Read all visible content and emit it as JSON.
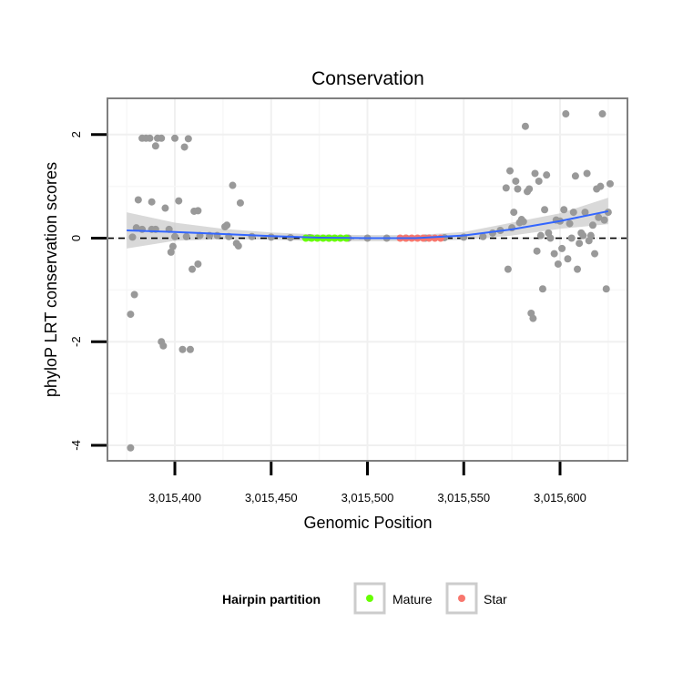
{
  "chart_data": {
    "type": "scatter",
    "title": "Conservation",
    "xlabel": "Genomic Position",
    "ylabel": "phyloP LRT conservation scores",
    "xlim": [
      3015365,
      3015635
    ],
    "ylim": [
      -4.3,
      2.7
    ],
    "x_ticks": [
      3015400,
      3015450,
      3015500,
      3015550,
      3015600
    ],
    "x_tick_labels": [
      "3,015,400",
      "3,015,450",
      "3,015,500",
      "3,015,550",
      "3,015,600"
    ],
    "y_ticks": [
      -4,
      -2,
      0,
      2
    ],
    "y_tick_labels": [
      "-4",
      "-2",
      "0",
      "2"
    ],
    "reference_line": {
      "y": 0,
      "style": "dashed"
    },
    "colors": {
      "points": "#999999",
      "smooth": "#3366ff",
      "band": "#cccccc",
      "mature": "#66ff00",
      "star": "#f8766d",
      "panel_border": "#7f7f7f"
    },
    "legend": {
      "title": "Hairpin partition",
      "position": "bottom",
      "entries": [
        {
          "label": "Mature",
          "color": "#66ff00"
        },
        {
          "label": "Star",
          "color": "#f8766d"
        }
      ]
    },
    "series": [
      {
        "name": "scores",
        "points": [
          [
            3015377,
            -4.05
          ],
          [
            3015377,
            -1.47
          ],
          [
            3015378,
            0.02
          ],
          [
            3015379,
            -1.09
          ],
          [
            3015380,
            0.2
          ],
          [
            3015381,
            0.74
          ],
          [
            3015383,
            1.93
          ],
          [
            3015383,
            0.17
          ],
          [
            3015385,
            1.93
          ],
          [
            3015387,
            1.93
          ],
          [
            3015388,
            0.17
          ],
          [
            3015388,
            0.7
          ],
          [
            3015390,
            1.78
          ],
          [
            3015390,
            0.17
          ],
          [
            3015391,
            1.93
          ],
          [
            3015393,
            -2.0
          ],
          [
            3015393,
            1.93
          ],
          [
            3015394,
            -2.08
          ],
          [
            3015395,
            0.58
          ],
          [
            3015397,
            0.17
          ],
          [
            3015398,
            -0.27
          ],
          [
            3015399,
            -0.16
          ],
          [
            3015400,
            1.93
          ],
          [
            3015400,
            0.03
          ],
          [
            3015402,
            0.72
          ],
          [
            3015404,
            -2.15
          ],
          [
            3015405,
            1.76
          ],
          [
            3015406,
            0.03
          ],
          [
            3015407,
            1.92
          ],
          [
            3015408,
            -2.15
          ],
          [
            3015409,
            -0.6
          ],
          [
            3015410,
            0.52
          ],
          [
            3015412,
            0.53
          ],
          [
            3015412,
            -0.5
          ],
          [
            3015413,
            0.05
          ],
          [
            3015418,
            0.05
          ],
          [
            3015422,
            0.05
          ],
          [
            3015426,
            0.22
          ],
          [
            3015427,
            0.25
          ],
          [
            3015428,
            0.03
          ],
          [
            3015430,
            1.02
          ],
          [
            3015432,
            -0.1
          ],
          [
            3015433,
            -0.15
          ],
          [
            3015434,
            0.68
          ],
          [
            3015440,
            0.03
          ],
          [
            3015450,
            0.02
          ],
          [
            3015460,
            0.01
          ],
          [
            3015470,
            0.01
          ],
          [
            3015480,
            0.0
          ],
          [
            3015490,
            0.0
          ],
          [
            3015500,
            0.0
          ],
          [
            3015510,
            0.0
          ],
          [
            3015520,
            0.0
          ],
          [
            3015530,
            0.0
          ],
          [
            3015540,
            0.01
          ],
          [
            3015550,
            0.02
          ],
          [
            3015560,
            0.03
          ],
          [
            3015565,
            0.1
          ],
          [
            3015569,
            0.15
          ],
          [
            3015572,
            0.97
          ],
          [
            3015573,
            -0.6
          ],
          [
            3015574,
            1.3
          ],
          [
            3015575,
            0.2
          ],
          [
            3015576,
            0.5
          ],
          [
            3015577,
            1.1
          ],
          [
            3015578,
            0.95
          ],
          [
            3015579,
            0.3
          ],
          [
            3015580,
            0.36
          ],
          [
            3015581,
            0.32
          ],
          [
            3015582,
            2.16
          ],
          [
            3015583,
            0.9
          ],
          [
            3015584,
            0.95
          ],
          [
            3015585,
            -1.45
          ],
          [
            3015586,
            -1.55
          ],
          [
            3015587,
            1.25
          ],
          [
            3015588,
            -0.25
          ],
          [
            3015589,
            1.1
          ],
          [
            3015590,
            0.05
          ],
          [
            3015591,
            -0.98
          ],
          [
            3015592,
            0.55
          ],
          [
            3015593,
            1.22
          ],
          [
            3015594,
            0.1
          ],
          [
            3015595,
            0.0
          ],
          [
            3015597,
            -0.3
          ],
          [
            3015598,
            0.35
          ],
          [
            3015599,
            -0.5
          ],
          [
            3015600,
            0.33
          ],
          [
            3015601,
            -0.2
          ],
          [
            3015602,
            0.55
          ],
          [
            3015603,
            2.4
          ],
          [
            3015604,
            -0.4
          ],
          [
            3015605,
            0.28
          ],
          [
            3015606,
            0.0
          ],
          [
            3015607,
            0.5
          ],
          [
            3015608,
            1.2
          ],
          [
            3015609,
            -0.6
          ],
          [
            3015610,
            -0.1
          ],
          [
            3015611,
            0.1
          ],
          [
            3015612,
            0.05
          ],
          [
            3015613,
            0.5
          ],
          [
            3015614,
            1.25
          ],
          [
            3015615,
            -0.05
          ],
          [
            3015616,
            0.05
          ],
          [
            3015617,
            0.25
          ],
          [
            3015618,
            -0.3
          ],
          [
            3015619,
            0.95
          ],
          [
            3015620,
            0.4
          ],
          [
            3015621,
            1.0
          ],
          [
            3015622,
            2.4
          ],
          [
            3015623,
            0.35
          ],
          [
            3015624,
            -0.98
          ],
          [
            3015625,
            0.5
          ],
          [
            3015626,
            1.05
          ]
        ]
      },
      {
        "name": "mature",
        "points": [
          [
            3015468,
            0.0
          ],
          [
            3015471,
            0.0
          ],
          [
            3015474,
            0.0
          ],
          [
            3015477,
            0.0
          ],
          [
            3015480,
            0.0
          ],
          [
            3015483,
            0.0
          ],
          [
            3015486,
            0.0
          ],
          [
            3015489,
            0.0
          ]
        ]
      },
      {
        "name": "star",
        "points": [
          [
            3015517,
            0.0
          ],
          [
            3015520,
            0.0
          ],
          [
            3015523,
            0.0
          ],
          [
            3015526,
            0.0
          ],
          [
            3015529,
            0.0
          ],
          [
            3015532,
            0.0
          ],
          [
            3015535,
            0.0
          ],
          [
            3015538,
            0.0
          ]
        ]
      }
    ],
    "smooth": {
      "x": [
        3015375,
        3015400,
        3015425,
        3015450,
        3015475,
        3015500,
        3015525,
        3015550,
        3015575,
        3015600,
        3015625
      ],
      "y": [
        0.15,
        0.12,
        0.08,
        0.04,
        0.01,
        0.0,
        0.0,
        0.05,
        0.17,
        0.33,
        0.52
      ],
      "lower": [
        -0.2,
        -0.05,
        -0.02,
        -0.03,
        -0.06,
        -0.06,
        -0.06,
        -0.03,
        0.05,
        0.18,
        0.27
      ],
      "upper": [
        0.5,
        0.3,
        0.18,
        0.11,
        0.07,
        0.06,
        0.06,
        0.12,
        0.3,
        0.48,
        0.78
      ]
    }
  }
}
